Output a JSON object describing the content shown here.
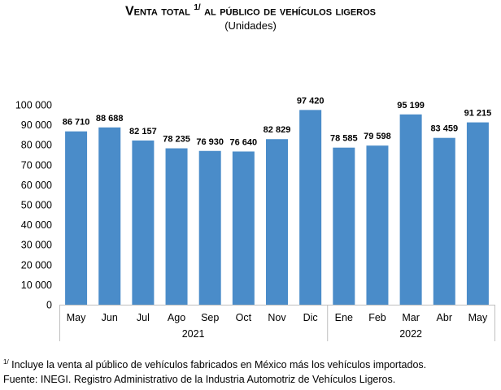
{
  "chart_data": {
    "type": "bar",
    "title": "Venta total",
    "title_superscript": "1/",
    "title_rest": "al público de vehículos ligeros",
    "subtitle": "(Unidades)",
    "categories": [
      "May",
      "Jun",
      "Jul",
      "Ago",
      "Sep",
      "Oct",
      "Nov",
      "Dic",
      "Ene",
      "Feb",
      "Mar",
      "Abr",
      "May"
    ],
    "years": [
      {
        "label": "2021",
        "start": 0,
        "end": 7
      },
      {
        "label": "2022",
        "start": 8,
        "end": 12
      }
    ],
    "values": [
      86710,
      88688,
      82157,
      78235,
      76930,
      76640,
      82829,
      97420,
      78585,
      79598,
      95199,
      83459,
      91215
    ],
    "data_labels": [
      "86 710",
      "88 688",
      "82 157",
      "78 235",
      "76 930",
      "76 640",
      "82 829",
      "97 420",
      "78 585",
      "79 598",
      "95 199",
      "83 459",
      "91 215"
    ],
    "yticks": [
      0,
      10000,
      20000,
      30000,
      40000,
      50000,
      60000,
      70000,
      80000,
      90000,
      100000
    ],
    "ytick_labels": [
      "0",
      "10 000",
      "20 000",
      "30 000",
      "40 000",
      "50 000",
      "60 000",
      "70 000",
      "80 000",
      "90 000",
      "100 000"
    ],
    "ylim": [
      0,
      100000
    ],
    "xlabel": "",
    "ylabel": "",
    "grid": false,
    "bar_color": "#4A8CC9"
  },
  "footnote": {
    "mark": "1/",
    "text": " Incluye la venta al público de vehículos fabricados en México más los vehículos importados."
  },
  "source": "Fuente: INEGI. Registro Administrativo de la Industria Automotriz de Vehículos Ligeros."
}
